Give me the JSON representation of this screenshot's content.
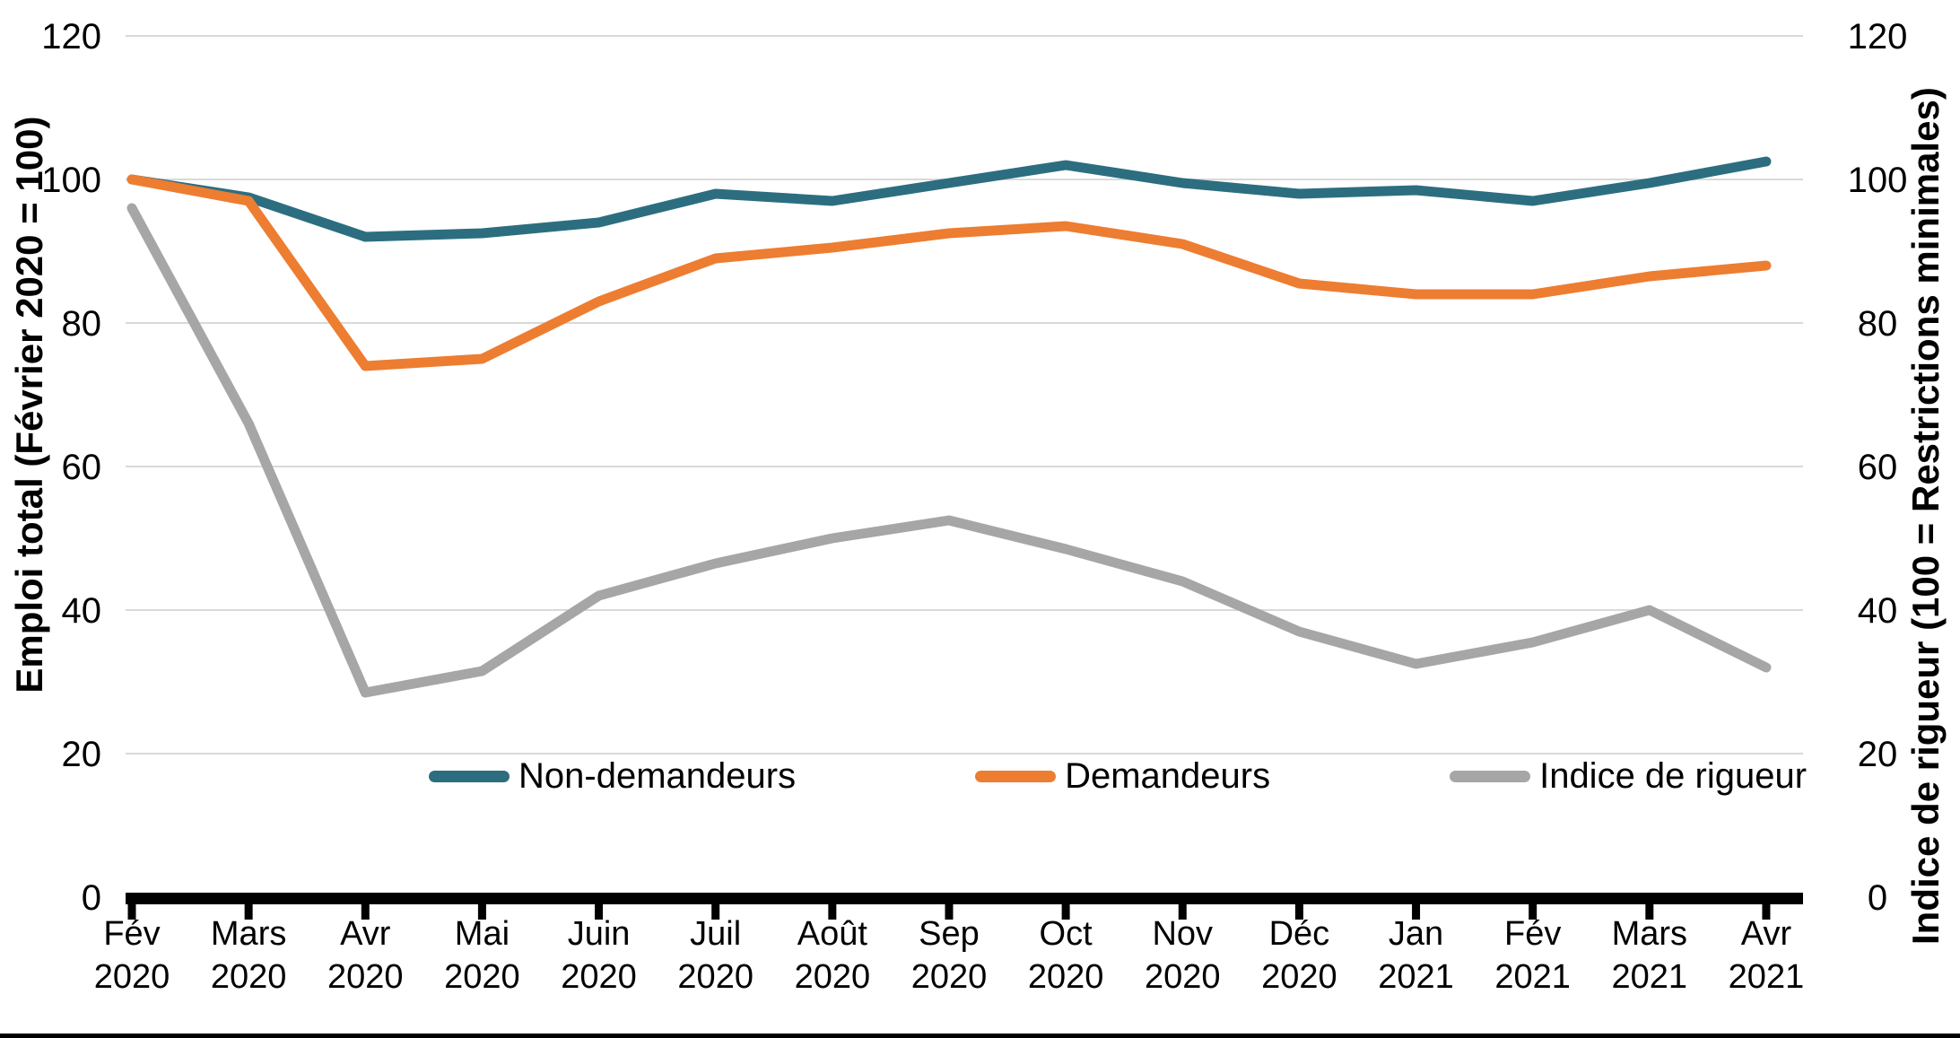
{
  "chart_data": {
    "type": "line",
    "title": "",
    "categories": [
      {
        "month": "Fév",
        "year": "2020"
      },
      {
        "month": "Mars",
        "year": "2020"
      },
      {
        "month": "Avr",
        "year": "2020"
      },
      {
        "month": "Mai",
        "year": "2020"
      },
      {
        "month": "Juin",
        "year": "2020"
      },
      {
        "month": "Juil",
        "year": "2020"
      },
      {
        "month": "Août",
        "year": "2020"
      },
      {
        "month": "Sep",
        "year": "2020"
      },
      {
        "month": "Oct",
        "year": "2020"
      },
      {
        "month": "Nov",
        "year": "2020"
      },
      {
        "month": "Déc",
        "year": "2020"
      },
      {
        "month": "Jan",
        "year": "2021"
      },
      {
        "month": "Fév",
        "year": "2021"
      },
      {
        "month": "Mars",
        "year": "2021"
      },
      {
        "month": "Avr",
        "year": "2021"
      }
    ],
    "series": [
      {
        "name": "Non-demandeurs",
        "color": "#2c6e80",
        "values": [
          100,
          97.5,
          92,
          92.5,
          94,
          98,
          97,
          99.5,
          102,
          99.5,
          98,
          98.5,
          97,
          99.5,
          102.5
        ]
      },
      {
        "name": "Demandeurs",
        "color": "#ed7d31",
        "values": [
          100,
          97,
          74,
          75,
          83,
          89,
          90.5,
          92.5,
          93.5,
          91,
          85.5,
          84,
          84,
          86.5,
          88
        ]
      },
      {
        "name": "Indice de rigueur",
        "color": "#a6a6a6",
        "values": [
          96,
          66,
          28.5,
          31.5,
          42,
          46.5,
          50,
          52.5,
          48.5,
          44,
          37,
          32.5,
          35.5,
          40,
          32
        ]
      }
    ],
    "y_axis_left": {
      "label": "Emploi total  (Février 2020 = 100)",
      "ticks": [
        0,
        20,
        40,
        60,
        80,
        100,
        120
      ],
      "min": 0,
      "max": 120
    },
    "y_axis_right": {
      "label": "Indice de rigueur (100 = Restrictions minimales)",
      "ticks": [
        0,
        20,
        40,
        60,
        80,
        100,
        120
      ],
      "min": 0,
      "max": 120
    },
    "grid": true,
    "legend_position": "bottom-inside",
    "colors": {
      "gridline": "#d9d9d9",
      "axis": "#000000",
      "text": "#000000",
      "background": "#ffffff"
    }
  }
}
